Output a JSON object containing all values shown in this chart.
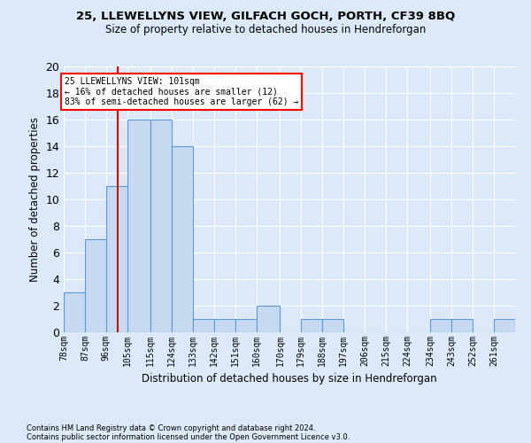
{
  "title": "25, LLEWELLYNS VIEW, GILFACH GOCH, PORTH, CF39 8BQ",
  "subtitle": "Size of property relative to detached houses in Hendreforgan",
  "xlabel": "Distribution of detached houses by size in Hendreforgan",
  "ylabel": "Number of detached properties",
  "footnote1": "Contains HM Land Registry data © Crown copyright and database right 2024.",
  "footnote2": "Contains public sector information licensed under the Open Government Licence v3.0.",
  "bin_labels": [
    "78sqm",
    "87sqm",
    "96sqm",
    "105sqm",
    "115sqm",
    "124sqm",
    "133sqm",
    "142sqm",
    "151sqm",
    "160sqm",
    "170sqm",
    "179sqm",
    "188sqm",
    "197sqm",
    "206sqm",
    "215sqm",
    "224sqm",
    "234sqm",
    "243sqm",
    "252sqm",
    "261sqm"
  ],
  "bin_edges": [
    78,
    87,
    96,
    105,
    115,
    124,
    133,
    142,
    151,
    160,
    170,
    179,
    188,
    197,
    206,
    215,
    224,
    234,
    243,
    252,
    261,
    270
  ],
  "counts": [
    3,
    7,
    11,
    16,
    16,
    14,
    1,
    1,
    1,
    2,
    0,
    1,
    1,
    0,
    0,
    0,
    0,
    1,
    1,
    0,
    1
  ],
  "bar_color": "#c6d9f0",
  "bar_edge_color": "#5b9bd5",
  "property_line_x": 101,
  "annotation_text": "25 LLEWELLYNS VIEW: 101sqm\n← 16% of detached houses are smaller (12)\n83% of semi-detached houses are larger (62) →",
  "annotation_box_color": "#ffffff",
  "annotation_box_edge_color": "#ff0000",
  "property_line_color": "#cc0000",
  "ylim": [
    0,
    20
  ],
  "yticks": [
    0,
    2,
    4,
    6,
    8,
    10,
    12,
    14,
    16,
    18,
    20
  ],
  "background_color": "#dce9f8",
  "grid_color": "#ffffff"
}
